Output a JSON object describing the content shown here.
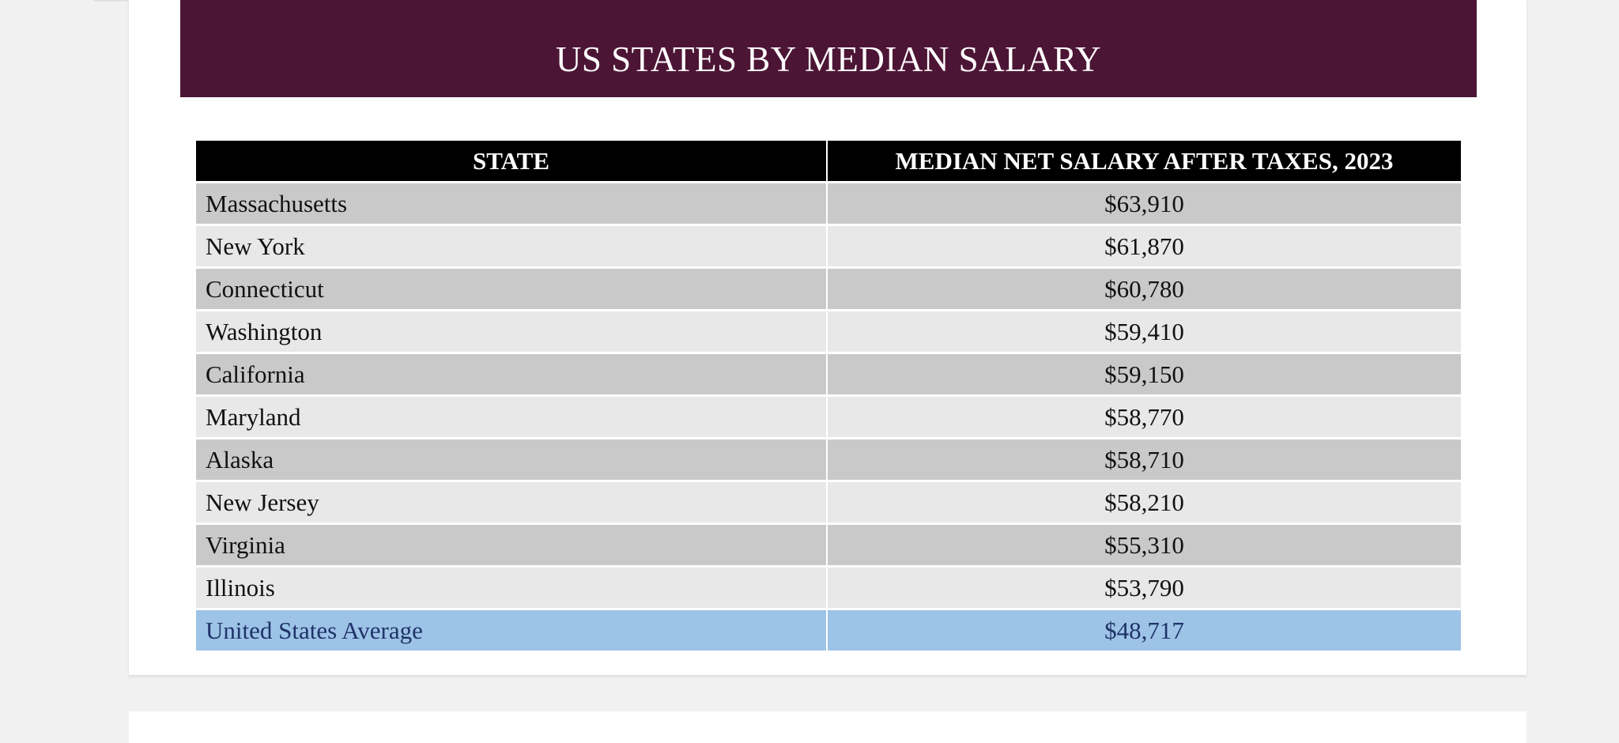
{
  "title": "US STATES BY MEDIAN SALARY",
  "table": {
    "headers": [
      "STATE",
      "MEDIAN NET SALARY AFTER TAXES, 2023"
    ],
    "rows": [
      {
        "state": "Massachusetts",
        "salary": "$63,910"
      },
      {
        "state": "New York",
        "salary": "$61,870"
      },
      {
        "state": "Connecticut",
        "salary": "$60,780"
      },
      {
        "state": "Washington",
        "salary": "$59,410"
      },
      {
        "state": "California",
        "salary": "$59,150"
      },
      {
        "state": "Maryland",
        "salary": "$58,770"
      },
      {
        "state": "Alaska",
        "salary": "$58,710"
      },
      {
        "state": "New Jersey",
        "salary": "$58,210"
      },
      {
        "state": "Virginia",
        "salary": "$55,310"
      },
      {
        "state": "Illinois",
        "salary": "$53,790"
      }
    ],
    "average": {
      "state": "United States Average",
      "salary": "$48,717"
    }
  },
  "colors": {
    "banner": "#4d1535",
    "header": "#000000",
    "row_dark": "#c9c9c9",
    "row_light": "#e8e8e8",
    "average_row": "#9dc3e6",
    "average_text": "#1f3369"
  }
}
